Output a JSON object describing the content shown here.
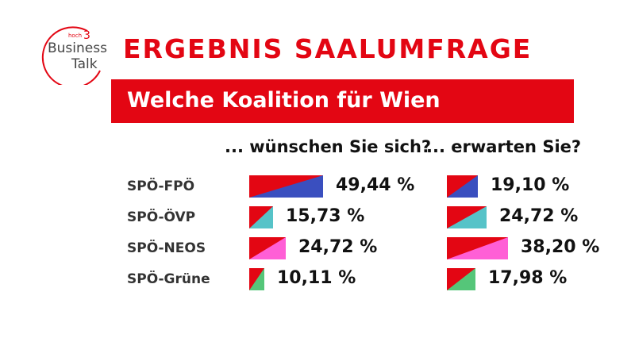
{
  "logo": {
    "line1": "hoch",
    "sup": "3",
    "line2": "Business",
    "line3": "Talk"
  },
  "title": "ERGEBNIS SAALUMFRAGE",
  "subtitle": "Welche Koalition für Wien",
  "chart_data": {
    "type": "bar",
    "title": "Welche Koalition für Wien",
    "categories": [
      "SPÖ-FPÖ",
      "SPÖ-ÖVP",
      "SPÖ-NEOS",
      "SPÖ-Grüne"
    ],
    "series": [
      {
        "name": "... wünschen Sie sich?",
        "values": [
          49.44,
          15.73,
          24.72,
          10.11
        ],
        "labels": [
          "49,44 %",
          "15,73 %",
          "24,72 %",
          "10,11 %"
        ]
      },
      {
        "name": "... erwarten Sie?",
        "values": [
          19.1,
          24.72,
          38.2,
          17.98
        ],
        "labels": [
          "19,10 %",
          "24,72 %",
          "38,20 %",
          "17,98 %"
        ]
      }
    ],
    "colors": {
      "base": "#e30613",
      "partners": [
        "#3a4fbf",
        "#56c3c8",
        "#ff5fd6",
        "#55c679"
      ]
    }
  }
}
